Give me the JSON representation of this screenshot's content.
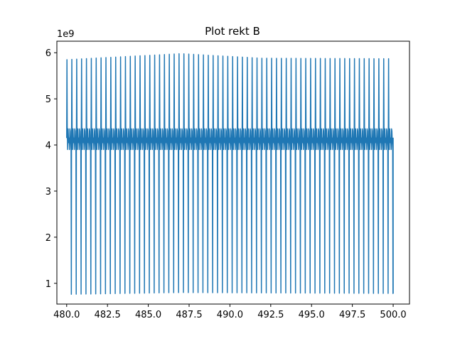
{
  "chart_data": {
    "type": "line",
    "title": "Plot rekt B",
    "xlabel": "",
    "ylabel": "",
    "y_offset_label": "1e9",
    "xlim": [
      479.4,
      501.0
    ],
    "ylim": [
      0.55,
      6.25
    ],
    "x_ticks": [
      {
        "value": 480.0,
        "label": "480.0"
      },
      {
        "value": 482.5,
        "label": "482.5"
      },
      {
        "value": 485.0,
        "label": "485.0"
      },
      {
        "value": 487.5,
        "label": "487.5"
      },
      {
        "value": 490.0,
        "label": "490.0"
      },
      {
        "value": 492.5,
        "label": "492.5"
      },
      {
        "value": 495.0,
        "label": "495.0"
      },
      {
        "value": 497.5,
        "label": "497.5"
      },
      {
        "value": 500.0,
        "label": "500.0"
      }
    ],
    "y_ticks": [
      {
        "value": 1,
        "label": "1"
      },
      {
        "value": 2,
        "label": "2"
      },
      {
        "value": 3,
        "label": "3"
      },
      {
        "value": 4,
        "label": "4"
      },
      {
        "value": 5,
        "label": "5"
      },
      {
        "value": 6,
        "label": "6"
      }
    ],
    "grid": false,
    "series": [
      {
        "color": "#1f77b4",
        "cycle_count": 67,
        "x_start": 480.0,
        "x_end": 500.0,
        "peak_envelope": [
          [
            480.0,
            5.85
          ],
          [
            487.0,
            5.98
          ],
          [
            492.0,
            5.88
          ],
          [
            500.0,
            5.87
          ]
        ],
        "trough_envelope": [
          [
            480.0,
            0.76
          ],
          [
            487.0,
            0.8
          ],
          [
            500.0,
            0.78
          ]
        ],
        "band_values": [
          4.15,
          4.3,
          3.9,
          4.35,
          4.05
        ]
      }
    ]
  }
}
